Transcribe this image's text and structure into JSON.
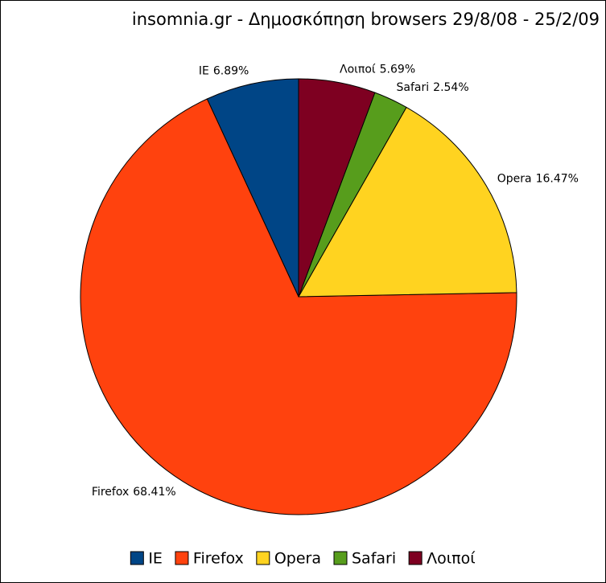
{
  "chart_data": {
    "type": "pie",
    "title": "insomnia.gr - Δημοσκόπηση browsers 29/8/08 - 25/2/09",
    "categories": [
      "IE",
      "Firefox",
      "Opera",
      "Safari",
      "Λοιποί"
    ],
    "values": [
      6.89,
      68.41,
      16.47,
      2.54,
      5.69
    ],
    "value_labels": [
      "6.89%",
      "68.41%",
      "16.47%",
      "2.54%",
      "5.69%"
    ],
    "colors": [
      "#004586",
      "#ff420e",
      "#ffd320",
      "#579d1c",
      "#7e0021"
    ],
    "legend": "bottom"
  }
}
